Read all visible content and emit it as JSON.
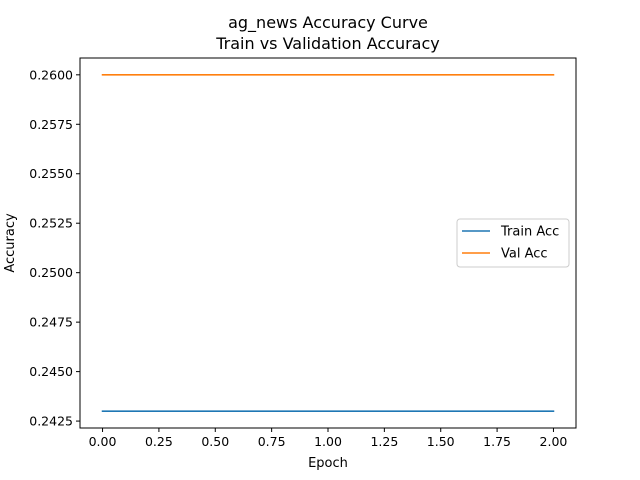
{
  "chart_data": {
    "type": "line",
    "title": "ag_news Accuracy Curve",
    "subtitle": "Train vs Validation Accuracy",
    "xlabel": "Epoch",
    "ylabel": "Accuracy",
    "x": [
      0,
      1,
      2
    ],
    "xlim": [
      -0.1,
      2.1
    ],
    "ylim": [
      0.24215,
      0.26085
    ],
    "xticks": [
      "0.00",
      "0.25",
      "0.50",
      "0.75",
      "1.00",
      "1.25",
      "1.50",
      "1.75",
      "2.00"
    ],
    "xtick_values": [
      0,
      0.25,
      0.5,
      0.75,
      1.0,
      1.25,
      1.5,
      1.75,
      2.0
    ],
    "yticks": [
      "0.2425",
      "0.2450",
      "0.2475",
      "0.2500",
      "0.2525",
      "0.2550",
      "0.2575",
      "0.2600"
    ],
    "ytick_values": [
      0.2425,
      0.245,
      0.2475,
      0.25,
      0.2525,
      0.255,
      0.2575,
      0.26
    ],
    "grid": false,
    "legend_position": "center-right",
    "series": [
      {
        "name": "Train Acc",
        "color": "#1f77b4",
        "values": [
          0.243,
          0.243,
          0.243
        ]
      },
      {
        "name": "Val Acc",
        "color": "#ff7f0e",
        "values": [
          0.26,
          0.26,
          0.26
        ]
      }
    ]
  }
}
